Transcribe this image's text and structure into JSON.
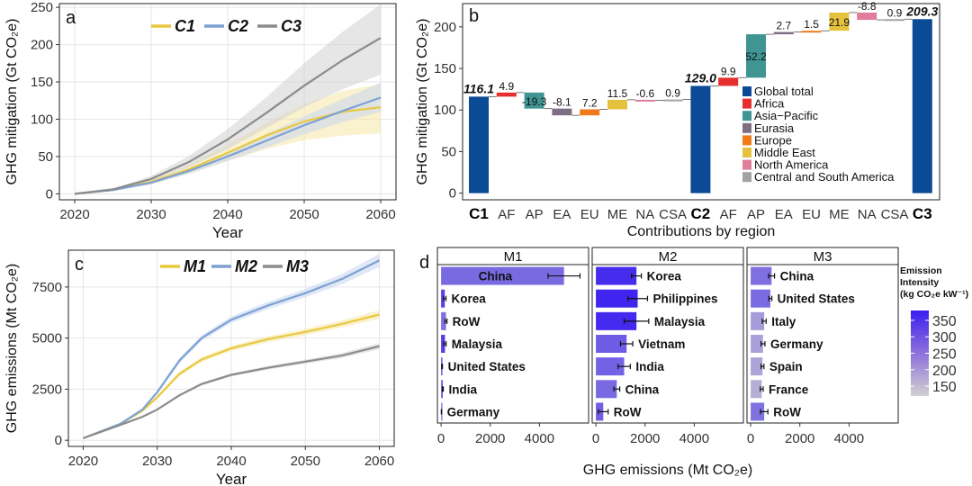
{
  "chart_data": [
    {
      "panel": "a",
      "type": "line",
      "xlabel": "Year",
      "ylabel": "GHG mitigation (Gt CO₂e)",
      "xlim": [
        2018,
        2062
      ],
      "ylim": [
        -8,
        255
      ],
      "xticks": [
        "2020",
        "2030",
        "2040",
        "2050",
        "2060"
      ],
      "yticks": [
        "0",
        "50",
        "100",
        "150",
        "200",
        "250"
      ],
      "x": [
        2020,
        2025,
        2030,
        2035,
        2040,
        2045,
        2050,
        2055,
        2060
      ],
      "legend": "top-center",
      "grid": true,
      "series": [
        {
          "name": "C1",
          "color": "#e9c93f",
          "band": "#f5e7a6",
          "values": [
            0,
            5,
            16,
            33,
            55,
            78,
            97,
            110,
            116
          ],
          "lower": [
            0,
            4,
            13,
            27,
            44,
            60,
            72,
            78,
            81
          ],
          "upper": [
            0,
            6,
            19,
            39,
            66,
            95,
            120,
            138,
            147
          ]
        },
        {
          "name": "C2",
          "color": "#7da1d4",
          "band": "#c6d6ee",
          "values": [
            0,
            5,
            15,
            31,
            50,
            71,
            92,
            111,
            129
          ],
          "lower": [
            0,
            4,
            13,
            27,
            44,
            62,
            80,
            96,
            110
          ],
          "upper": [
            0,
            6,
            17,
            35,
            56,
            80,
            104,
            127,
            149
          ]
        },
        {
          "name": "C3",
          "color": "#8c8c8c",
          "band": "#d2d2d2",
          "values": [
            0,
            6,
            20,
            43,
            73,
            108,
            145,
            179,
            209
          ],
          "lower": [
            0,
            5,
            17,
            36,
            60,
            88,
            116,
            140,
            160
          ],
          "upper": [
            0,
            7,
            24,
            51,
            87,
            129,
            175,
            217,
            254
          ]
        }
      ]
    },
    {
      "panel": "b",
      "type": "bar",
      "subtype": "waterfall",
      "xlabel": "Contributions by region",
      "ylabel": "GHG mitigation (Gt CO₂e)",
      "ylim": [
        -8,
        228
      ],
      "yticks": [
        "0",
        "50",
        "100",
        "150",
        "200"
      ],
      "categories": [
        "C1",
        "AF",
        "AP",
        "EA",
        "EU",
        "ME",
        "NA",
        "CSA",
        "C2",
        "AF",
        "AP",
        "EA",
        "EU",
        "ME",
        "NA",
        "CSA",
        "C3"
      ],
      "values": [
        116.1,
        4.9,
        -19.3,
        -8.1,
        7.2,
        11.5,
        -0.6,
        0.9,
        129.0,
        9.9,
        52.2,
        2.7,
        1.5,
        21.9,
        -8.8,
        0.9,
        209.3
      ],
      "labels": [
        "116.1",
        "4.9",
        "-19.3",
        "-8.1",
        "7.2",
        "11.5",
        "-0.6",
        "0.9",
        "129.0",
        "9.9",
        "52.2",
        "2.7",
        "1.5",
        "21.9",
        "-8.8",
        "0.9",
        "209.3"
      ],
      "kinds": [
        "total",
        "AF",
        "AP",
        "EA",
        "EU",
        "ME",
        "NA",
        "CSA",
        "total",
        "AF",
        "AP",
        "EA",
        "EU",
        "ME",
        "NA",
        "CSA",
        "total"
      ],
      "legend_placement": "center-right",
      "legend": [
        {
          "key": "total",
          "label": "Global total",
          "color": "#0b4a94"
        },
        {
          "key": "AF",
          "label": "Africa",
          "color": "#e62f2f"
        },
        {
          "key": "AP",
          "label": "Asia−Pacific",
          "color": "#3f9593"
        },
        {
          "key": "EA",
          "label": "Eurasia",
          "color": "#7e6e84"
        },
        {
          "key": "EU",
          "label": "Europe",
          "color": "#f07a1a"
        },
        {
          "key": "ME",
          "label": "Middle East",
          "color": "#e5c23e"
        },
        {
          "key": "NA",
          "label": "North America",
          "color": "#df7d9b"
        },
        {
          "key": "CSA",
          "label": "Central and South America",
          "color": "#a3a3a3"
        }
      ]
    },
    {
      "panel": "c",
      "type": "line",
      "xlabel": "Year",
      "ylabel": "GHG emissions (Mt CO₂e)",
      "xlim": [
        2018,
        2062
      ],
      "ylim": [
        -300,
        9300
      ],
      "xticks": [
        "2020",
        "2030",
        "2040",
        "2050",
        "2060"
      ],
      "yticks": [
        "0",
        "2500",
        "5000",
        "7500"
      ],
      "x": [
        2020,
        2025,
        2028,
        2030,
        2033,
        2036,
        2040,
        2045,
        2050,
        2055,
        2060
      ],
      "legend": "top-center",
      "grid": true,
      "series": [
        {
          "name": "M1",
          "color": "#e9c93f",
          "band": "#f5e7a6",
          "values": [
            100,
            800,
            1450,
            2100,
            3250,
            3950,
            4500,
            4950,
            5300,
            5700,
            6150
          ],
          "lower": [
            100,
            780,
            1400,
            2020,
            3150,
            3830,
            4370,
            4800,
            5140,
            5520,
            5940
          ],
          "upper": [
            100,
            820,
            1500,
            2180,
            3350,
            4070,
            4630,
            5100,
            5460,
            5880,
            6360
          ]
        },
        {
          "name": "M2",
          "color": "#7da1d4",
          "band": "#c6d6ee",
          "values": [
            100,
            800,
            1500,
            2350,
            3900,
            5000,
            5900,
            6600,
            7200,
            7900,
            8800
          ],
          "lower": [
            100,
            780,
            1460,
            2270,
            3780,
            4860,
            5740,
            6420,
            7000,
            7650,
            8480
          ],
          "upper": [
            100,
            820,
            1540,
            2430,
            4020,
            5140,
            6060,
            6780,
            7400,
            8150,
            9120
          ]
        },
        {
          "name": "M3",
          "color": "#8c8c8c",
          "band": "#d2d2d2",
          "values": [
            100,
            750,
            1150,
            1500,
            2200,
            2750,
            3200,
            3550,
            3850,
            4150,
            4600
          ],
          "lower": [
            100,
            740,
            1130,
            1460,
            2140,
            2680,
            3120,
            3460,
            3750,
            4030,
            4450
          ],
          "upper": [
            100,
            760,
            1170,
            1540,
            2260,
            2820,
            3280,
            3640,
            3950,
            4270,
            4750
          ]
        }
      ]
    },
    {
      "panel": "d",
      "type": "bar",
      "orientation": "horizontal",
      "xlabel": "GHG emissions (Mt CO₂e)",
      "xlim": [
        -150,
        6000
      ],
      "xticks": [
        "0",
        "2000",
        "4000"
      ],
      "colorbar": {
        "title_lines": [
          "Emission",
          "Intensity",
          "(kg CO₂e kW⁻¹)"
        ],
        "min": 120,
        "max": 380,
        "ticks": [
          "350",
          "300",
          "250",
          "200",
          "150"
        ],
        "low_color": "#d0d0d0",
        "high_color": "#3b1ff0"
      },
      "facets": [
        {
          "name": "M1",
          "categories": [
            "China",
            "Korea",
            "RoW",
            "Malaysia",
            "United States",
            "India",
            "Germany"
          ],
          "values": [
            5000,
            150,
            200,
            160,
            40,
            70,
            15
          ],
          "errors": [
            650,
            50,
            40,
            45,
            15,
            20,
            5
          ],
          "intensity": [
            270,
            330,
            260,
            335,
            300,
            285,
            230
          ]
        },
        {
          "name": "M2",
          "categories": [
            "Korea",
            "Philippines",
            "Malaysia",
            "Vietnam",
            "India",
            "China",
            "RoW"
          ],
          "values": [
            1650,
            1700,
            1650,
            1250,
            1150,
            850,
            300
          ],
          "errors": [
            200,
            400,
            500,
            250,
            250,
            120,
            200
          ],
          "intensity": [
            360,
            372,
            365,
            290,
            282,
            270,
            285
          ]
        },
        {
          "name": "M3",
          "categories": [
            "China",
            "United States",
            "Italy",
            "Germany",
            "Spain",
            "France",
            "RoW"
          ],
          "values": [
            850,
            800,
            550,
            500,
            480,
            450,
            550
          ],
          "errors": [
            120,
            60,
            80,
            80,
            60,
            60,
            150
          ],
          "intensity": [
            262,
            268,
            195,
            190,
            185,
            168,
            260
          ]
        }
      ]
    }
  ],
  "panel_letters": [
    "a",
    "b",
    "c",
    "d"
  ]
}
